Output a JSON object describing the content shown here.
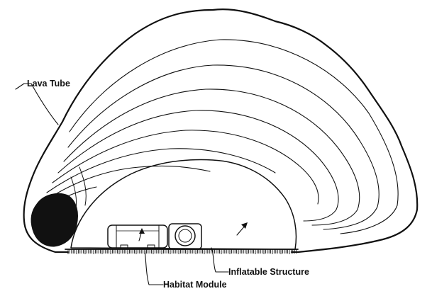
{
  "labels": {
    "lava_tube": "Lava Tube",
    "inflatable_structure": "Inflatable Structure",
    "habitat_module": "Habitat Module"
  },
  "colors": {
    "ink": "#111111",
    "paper": "#ffffff"
  }
}
